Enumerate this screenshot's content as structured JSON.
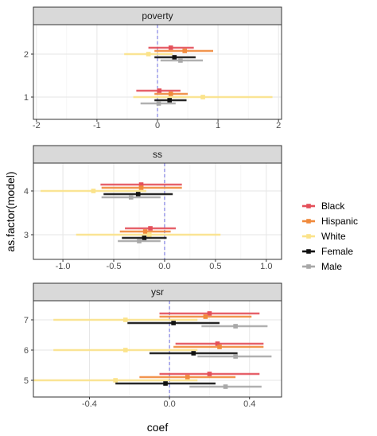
{
  "chart_data": {
    "type": "scatter",
    "subtype": "faceted coefficient plot with interval bars",
    "xlabel": "coef",
    "ylabel": "as.factor(model)",
    "reference_line": {
      "x": 0,
      "style": "dashed",
      "color": "#6a6ae0"
    },
    "grid": true,
    "legend_position": "right",
    "series": [
      {
        "name": "Black",
        "color": "#e4505a"
      },
      {
        "name": "Hispanic",
        "color": "#f08a3c"
      },
      {
        "name": "White",
        "color": "#fbe38a"
      },
      {
        "name": "Female",
        "color": "#111111"
      },
      {
        "name": "Male",
        "color": "#a8a8a8"
      }
    ],
    "facets": [
      {
        "title": "poverty",
        "xlim": [
          -2.05,
          2.05
        ],
        "xticks": [
          -2,
          -1,
          0,
          1,
          2
        ],
        "xtick_labels": [
          "-2",
          "-1",
          "0",
          "1",
          "2"
        ],
        "categories": [
          "1",
          "2"
        ],
        "points": [
          {
            "series": "Black",
            "category": "2",
            "est": 0.22,
            "lo": -0.15,
            "hi": 0.6
          },
          {
            "series": "Hispanic",
            "category": "2",
            "est": 0.45,
            "lo": -0.05,
            "hi": 0.92
          },
          {
            "series": "White",
            "category": "2",
            "est": -0.15,
            "lo": -0.55,
            "hi": 0.25
          },
          {
            "series": "Female",
            "category": "2",
            "est": 0.28,
            "lo": -0.05,
            "hi": 0.63
          },
          {
            "series": "Male",
            "category": "2",
            "est": 0.38,
            "lo": 0.05,
            "hi": 0.75
          },
          {
            "series": "Black",
            "category": "1",
            "est": 0.03,
            "lo": -0.35,
            "hi": 0.38
          },
          {
            "series": "Hispanic",
            "category": "1",
            "est": 0.22,
            "lo": -0.05,
            "hi": 0.5
          },
          {
            "series": "White",
            "category": "1",
            "est": 0.75,
            "lo": -0.4,
            "hi": 1.9
          },
          {
            "series": "Female",
            "category": "1",
            "est": 0.2,
            "lo": -0.05,
            "hi": 0.48
          },
          {
            "series": "Male",
            "category": "1",
            "est": 0.02,
            "lo": -0.28,
            "hi": 0.3
          }
        ]
      },
      {
        "title": "ss",
        "xlim": [
          -1.29,
          1.15
        ],
        "xticks": [
          -1.0,
          -0.5,
          0.0,
          0.5,
          1.0
        ],
        "xtick_labels": [
          "-1.0",
          "-0.5",
          "0.0",
          "0.5",
          "1.0"
        ],
        "categories": [
          "3",
          "4"
        ],
        "points": [
          {
            "series": "Black",
            "category": "4",
            "est": -0.23,
            "lo": -0.63,
            "hi": 0.17
          },
          {
            "series": "Hispanic",
            "category": "4",
            "est": -0.23,
            "lo": -0.62,
            "hi": 0.17
          },
          {
            "series": "White",
            "category": "4",
            "est": -0.7,
            "lo": -1.22,
            "hi": -0.18
          },
          {
            "series": "Female",
            "category": "4",
            "est": -0.26,
            "lo": -0.6,
            "hi": 0.08
          },
          {
            "series": "Male",
            "category": "4",
            "est": -0.33,
            "lo": -0.62,
            "hi": -0.04
          },
          {
            "series": "Black",
            "category": "3",
            "est": -0.14,
            "lo": -0.39,
            "hi": 0.11
          },
          {
            "series": "Hispanic",
            "category": "3",
            "est": -0.19,
            "lo": -0.44,
            "hi": 0.06
          },
          {
            "series": "White",
            "category": "3",
            "est": -0.15,
            "lo": -0.87,
            "hi": 0.55
          },
          {
            "series": "Female",
            "category": "3",
            "est": -0.2,
            "lo": -0.42,
            "hi": 0.02
          },
          {
            "series": "Male",
            "category": "3",
            "est": -0.25,
            "lo": -0.46,
            "hi": -0.04
          }
        ]
      },
      {
        "title": "ysr",
        "xlim": [
          -0.68,
          0.56
        ],
        "xticks": [
          -0.4,
          0.0,
          0.4
        ],
        "xtick_labels": [
          "-0.4",
          "0.0",
          "0.4"
        ],
        "categories": [
          "5",
          "6",
          "7"
        ],
        "points": [
          {
            "series": "Black",
            "category": "7",
            "est": 0.2,
            "lo": -0.05,
            "hi": 0.45
          },
          {
            "series": "Hispanic",
            "category": "7",
            "est": 0.18,
            "lo": -0.05,
            "hi": 0.41
          },
          {
            "series": "White",
            "category": "7",
            "est": -0.22,
            "lo": -0.58,
            "hi": 0.14
          },
          {
            "series": "Female",
            "category": "7",
            "est": 0.02,
            "lo": -0.21,
            "hi": 0.25
          },
          {
            "series": "Male",
            "category": "7",
            "est": 0.33,
            "lo": 0.16,
            "hi": 0.49
          },
          {
            "series": "Black",
            "category": "6",
            "est": 0.24,
            "lo": 0.03,
            "hi": 0.47
          },
          {
            "series": "Hispanic",
            "category": "6",
            "est": 0.25,
            "lo": 0.02,
            "hi": 0.47
          },
          {
            "series": "White",
            "category": "6",
            "est": -0.22,
            "lo": -0.58,
            "hi": 0.14
          },
          {
            "series": "Female",
            "category": "6",
            "est": 0.12,
            "lo": -0.1,
            "hi": 0.34
          },
          {
            "series": "Male",
            "category": "6",
            "est": 0.33,
            "lo": 0.14,
            "hi": 0.51
          },
          {
            "series": "Black",
            "category": "5",
            "est": 0.2,
            "lo": -0.05,
            "hi": 0.45
          },
          {
            "series": "Hispanic",
            "category": "5",
            "est": 0.09,
            "lo": -0.15,
            "hi": 0.33
          },
          {
            "series": "White",
            "category": "5",
            "est": -0.27,
            "lo": -0.68,
            "hi": 0.14
          },
          {
            "series": "Female",
            "category": "5",
            "est": -0.02,
            "lo": -0.27,
            "hi": 0.23
          },
          {
            "series": "Male",
            "category": "5",
            "est": 0.28,
            "lo": 0.1,
            "hi": 0.46
          }
        ]
      }
    ]
  }
}
